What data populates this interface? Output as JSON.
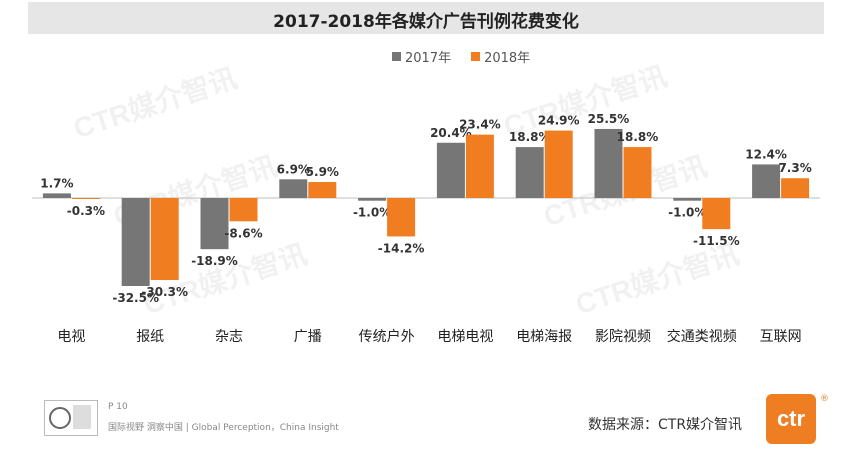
{
  "title": "2017-2018年各媒介广告刊例花费变化",
  "legend": [
    "2017年",
    "2018年"
  ],
  "colors": {
    "2017年": "#767676",
    "2018年": "#f07d20"
  },
  "chart_data": {
    "type": "bar",
    "title": "2017-2018年各媒介广告刊例花费变化",
    "categories": [
      "电视",
      "报纸",
      "杂志",
      "广播",
      "传统户外",
      "电梯电视",
      "电梯海报",
      "影院视频",
      "交通类视频",
      "互联网"
    ],
    "series": [
      {
        "name": "2017年",
        "values": [
          1.7,
          -32.5,
          -18.9,
          6.9,
          -1.0,
          20.4,
          18.8,
          25.5,
          -1.0,
          12.4
        ]
      },
      {
        "name": "2018年",
        "values": [
          -0.3,
          -30.3,
          -8.6,
          5.9,
          -14.2,
          23.4,
          24.9,
          18.8,
          -11.5,
          7.3
        ]
      }
    ],
    "data_labels": [
      [
        "1.7%",
        "-32.5%",
        "-18.9%",
        "6.9%",
        "-1.0%",
        "20.4%",
        "18.8%",
        "25.5%",
        "-1.0%",
        "12.4%"
      ],
      [
        "-0.3%",
        "-30.3%",
        "-8.6%",
        "5.9%",
        "-14.2%",
        "23.4%",
        "24.9%",
        "18.8%",
        "-11.5%",
        "7.3%"
      ]
    ],
    "ylim": [
      -33,
      27
    ],
    "grid": false,
    "legend_position": "top"
  },
  "watermark": "CTR媒介智讯",
  "footer": {
    "page": "P 10",
    "tagline": "国际视野 洞察中国 | Global Perception，China Insight",
    "source": "数据来源：CTR媒介智讯",
    "logo": "ctr",
    "registered": "®"
  }
}
